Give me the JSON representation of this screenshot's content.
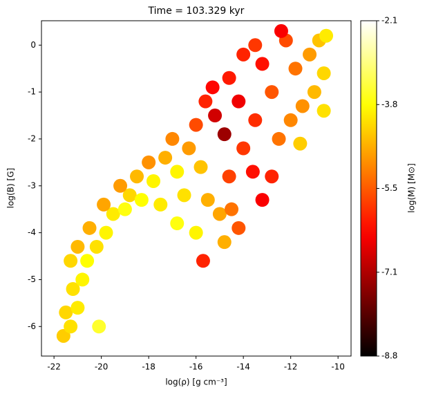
{
  "chart_data": {
    "type": "scatter",
    "title": "Time = 103.329 kyr",
    "xlabel": "log(ρ) [g cm⁻³]",
    "ylabel": "log(B) [G]",
    "xlim": [
      -22.53,
      -9.45
    ],
    "xticks": [
      -22,
      -20,
      -18,
      -16,
      -14,
      -12,
      -10
    ],
    "ylim": [
      -6.63,
      0.52
    ],
    "yticks": [
      0,
      -1,
      -2,
      -3,
      -4,
      -5,
      -6
    ],
    "x": [
      -21.6,
      -21.3,
      -21.5,
      -21.0,
      -21.2,
      -20.8,
      -21.3,
      -20.6,
      -20.2,
      -21.0,
      -19.8,
      -20.5,
      -19.5,
      -19.0,
      -19.9,
      -18.8,
      -18.3,
      -19.2,
      -18.5,
      -17.8,
      -17.5,
      -18.0,
      -17.3,
      -16.8,
      -16.5,
      -17.0,
      -16.3,
      -15.8,
      -15.5,
      -15.0,
      -14.5,
      -14.2,
      -14.8,
      -16.0,
      -16.8,
      -16.0,
      -15.6,
      -15.2,
      -14.8,
      -15.3,
      -14.6,
      -14.2,
      -14.0,
      -13.6,
      -13.5,
      -13.2,
      -14.0,
      -13.5,
      -12.8,
      -12.5,
      -12.8,
      -13.2,
      -14.6,
      -12.2,
      -11.8,
      -11.5,
      -11.2,
      -11.0,
      -10.8,
      -10.6,
      -10.6,
      -12.0,
      -11.6,
      -12.4,
      -10.5,
      -15.7,
      -20.1
    ],
    "values": [
      -6.2,
      -6.0,
      -5.7,
      -5.6,
      -5.2,
      -5.0,
      -4.6,
      -4.6,
      -4.3,
      -4.3,
      -4.0,
      -3.9,
      -3.6,
      -3.5,
      -3.4,
      -3.2,
      -3.3,
      -3.0,
      -2.8,
      -2.9,
      -3.4,
      -2.5,
      -2.4,
      -2.7,
      -3.2,
      -2.0,
      -2.2,
      -2.6,
      -3.3,
      -3.6,
      -3.5,
      -3.9,
      -4.2,
      -4.0,
      -3.8,
      -1.7,
      -1.2,
      -1.5,
      -1.9,
      -0.9,
      -0.7,
      -1.2,
      -2.2,
      -2.7,
      -1.6,
      -0.4,
      -0.2,
      0.0,
      -1.0,
      -2.0,
      -2.8,
      -3.3,
      -2.8,
      0.1,
      -0.5,
      -1.3,
      -0.2,
      -1.0,
      0.1,
      -0.6,
      -1.4,
      -1.6,
      -2.1,
      0.3,
      0.2,
      -4.6,
      -6.0
    ],
    "color_values": [
      -4.3,
      -4.1,
      -4.2,
      -4.0,
      -4.1,
      -3.9,
      -4.2,
      -3.8,
      -4.1,
      -4.5,
      -3.9,
      -4.6,
      -4.0,
      -3.7,
      -4.7,
      -4.2,
      -3.8,
      -4.8,
      -4.5,
      -3.9,
      -4.0,
      -4.9,
      -4.6,
      -3.9,
      -4.1,
      -5.0,
      -4.8,
      -4.4,
      -4.6,
      -4.7,
      -5.2,
      -5.5,
      -4.6,
      -3.9,
      -3.7,
      -5.6,
      -6.0,
      -6.8,
      -7.3,
      -6.3,
      -6.1,
      -6.5,
      -5.8,
      -6.2,
      -5.9,
      -6.2,
      -6.0,
      -5.8,
      -5.5,
      -5.2,
      -6.0,
      -6.4,
      -5.7,
      -5.6,
      -5.2,
      -4.9,
      -4.8,
      -4.5,
      -4.4,
      -4.2,
      -4.1,
      -5.0,
      -4.3,
      -6.4,
      -4.0,
      -6.0,
      -3.5
    ],
    "colorbar": {
      "label": "log(M) [M⊙]",
      "colormap": "hot",
      "lim": [
        -8.8,
        -2.1
      ],
      "ticks": [
        -2.1,
        {
          "value": -3.775,
          "label": "-3.8"
        },
        {
          "value": -5.45,
          "label": "-5.5"
        },
        {
          "value": -7.125,
          "label": "-7.1"
        },
        -8.8
      ]
    }
  }
}
